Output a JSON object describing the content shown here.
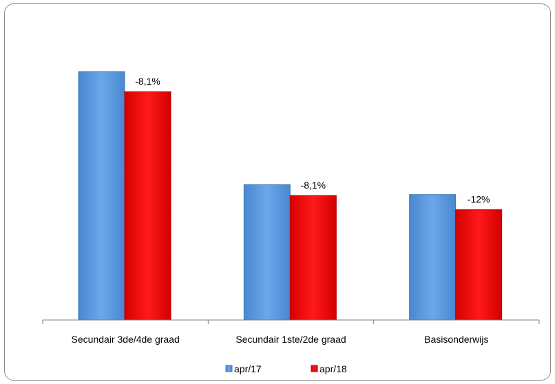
{
  "chart_data": {
    "type": "bar",
    "title": "",
    "xlabel": "",
    "ylabel": "",
    "categories": [
      "Secundair 3de/4de graad",
      "Secundair 1ste/2de graad",
      "Basisonderwijs"
    ],
    "series": [
      {
        "name": "apr/17",
        "values": [
          100,
          54.5,
          50.5
        ],
        "color": "#5b9be0"
      },
      {
        "name": "apr/18",
        "values": [
          91.9,
          50.1,
          44.4
        ],
        "color": "#ee1111"
      }
    ],
    "data_labels": [
      "-8,1%",
      "-8,1%",
      "-12%"
    ],
    "ylim": [
      0,
      100
    ],
    "grid": false,
    "y_axis_visible": false,
    "legend_position": "bottom"
  }
}
